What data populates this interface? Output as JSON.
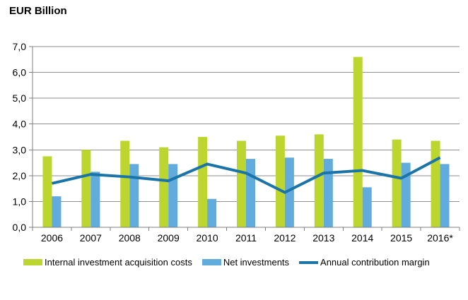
{
  "title": "EUR Billion",
  "chart_data": {
    "type": "bar",
    "categories": [
      "2006",
      "2007",
      "2008",
      "2009",
      "2010",
      "2011",
      "2012",
      "2013",
      "2014",
      "2015",
      "2016*"
    ],
    "series": [
      {
        "name": "Internal investment acquisition costs",
        "type": "bar",
        "color": "#BDD62F",
        "values": [
          2.75,
          3.0,
          3.35,
          3.1,
          3.5,
          3.35,
          3.55,
          3.6,
          6.6,
          3.4,
          3.35
        ]
      },
      {
        "name": "Net investments",
        "type": "bar",
        "color": "#62ABDD",
        "values": [
          1.2,
          2.15,
          2.45,
          2.45,
          1.1,
          2.65,
          2.7,
          2.65,
          1.55,
          2.5,
          2.45
        ]
      },
      {
        "name": "Annual contribution margin",
        "type": "line",
        "color": "#1A74A8",
        "values": [
          1.7,
          2.05,
          1.95,
          1.8,
          2.45,
          2.1,
          1.35,
          2.1,
          2.2,
          1.9,
          2.7
        ]
      }
    ],
    "ylabel": "EUR Billion",
    "xlabel": "",
    "ylim": [
      0,
      7
    ],
    "ytick_step": 1,
    "ytick_labels": [
      "0,0",
      "1,0",
      "2,0",
      "3,0",
      "4,0",
      "5,0",
      "6,0",
      "7,0"
    ],
    "grid": true,
    "legend_position": "bottom",
    "colors": {
      "grid": "#8E8E8E",
      "axis": "#7F7F7F",
      "text": "#000000",
      "background": "#FFFFFF"
    }
  }
}
